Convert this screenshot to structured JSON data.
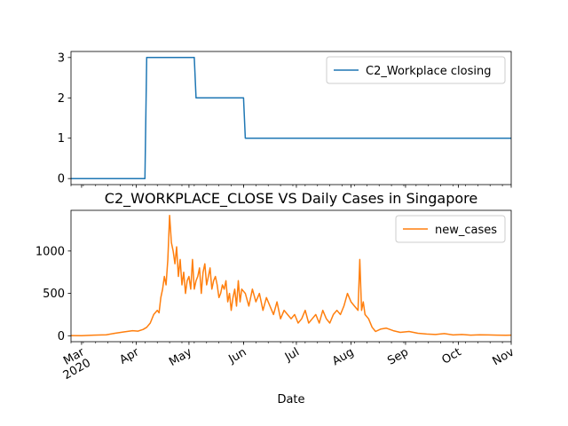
{
  "chart_data": [
    {
      "type": "line",
      "title": "",
      "xlabel": "",
      "ylabel": "",
      "x_range": [
        "2020-02-24",
        "2020-10-31"
      ],
      "ylim": [
        -0.15,
        3.15
      ],
      "yticks": [
        0,
        1,
        2,
        3
      ],
      "grid": false,
      "legend_position": "top-right",
      "series": [
        {
          "name": "C2_Workplace closing",
          "color": "#1f77b4",
          "x": [
            "2020-02-24",
            "2020-04-06",
            "2020-04-07",
            "2020-05-04",
            "2020-05-05",
            "2020-06-01",
            "2020-06-02",
            "2020-10-31"
          ],
          "values": [
            0,
            0,
            3,
            3,
            2,
            2,
            1,
            1
          ]
        }
      ]
    },
    {
      "type": "line",
      "title": "C2_WORKPLACE_CLOSE VS Daily Cases in Singapore",
      "xlabel": "Date",
      "ylabel": "",
      "x_range": [
        "2020-02-24",
        "2020-10-31"
      ],
      "ylim": [
        -70,
        1480
      ],
      "yticks": [
        0,
        500,
        1000
      ],
      "xtick_labels": [
        "Mar\n2020",
        "Apr",
        "May",
        "Jun",
        "Jul",
        "Aug",
        "Sep",
        "Oct",
        "Nov"
      ],
      "xtick_dates": [
        "2020-03-01",
        "2020-04-01",
        "2020-05-01",
        "2020-06-01",
        "2020-07-01",
        "2020-08-01",
        "2020-09-01",
        "2020-10-01",
        "2020-11-01"
      ],
      "grid": false,
      "legend_position": "top-right",
      "series": [
        {
          "name": "new_cases",
          "color": "#ff7f0e",
          "x": [
            "2020-02-24",
            "2020-03-01",
            "2020-03-08",
            "2020-03-15",
            "2020-03-20",
            "2020-03-25",
            "2020-03-30",
            "2020-04-02",
            "2020-04-05",
            "2020-04-07",
            "2020-04-09",
            "2020-04-11",
            "2020-04-13",
            "2020-04-14",
            "2020-04-15",
            "2020-04-16",
            "2020-04-17",
            "2020-04-18",
            "2020-04-19",
            "2020-04-20",
            "2020-04-21",
            "2020-04-22",
            "2020-04-23",
            "2020-04-24",
            "2020-04-25",
            "2020-04-26",
            "2020-04-27",
            "2020-04-28",
            "2020-04-29",
            "2020-04-30",
            "2020-05-01",
            "2020-05-02",
            "2020-05-03",
            "2020-05-04",
            "2020-05-05",
            "2020-05-06",
            "2020-05-07",
            "2020-05-08",
            "2020-05-09",
            "2020-05-10",
            "2020-05-11",
            "2020-05-12",
            "2020-05-13",
            "2020-05-14",
            "2020-05-15",
            "2020-05-16",
            "2020-05-17",
            "2020-05-18",
            "2020-05-19",
            "2020-05-20",
            "2020-05-21",
            "2020-05-22",
            "2020-05-23",
            "2020-05-24",
            "2020-05-25",
            "2020-05-26",
            "2020-05-27",
            "2020-05-28",
            "2020-05-29",
            "2020-05-30",
            "2020-05-31",
            "2020-06-02",
            "2020-06-04",
            "2020-06-06",
            "2020-06-08",
            "2020-06-10",
            "2020-06-12",
            "2020-06-14",
            "2020-06-16",
            "2020-06-18",
            "2020-06-20",
            "2020-06-22",
            "2020-06-24",
            "2020-06-26",
            "2020-06-28",
            "2020-06-30",
            "2020-07-02",
            "2020-07-04",
            "2020-07-06",
            "2020-07-08",
            "2020-07-10",
            "2020-07-12",
            "2020-07-14",
            "2020-07-16",
            "2020-07-18",
            "2020-07-20",
            "2020-07-22",
            "2020-07-24",
            "2020-07-26",
            "2020-07-28",
            "2020-07-30",
            "2020-08-01",
            "2020-08-03",
            "2020-08-05",
            "2020-08-06",
            "2020-08-07",
            "2020-08-08",
            "2020-08-09",
            "2020-08-11",
            "2020-08-13",
            "2020-08-15",
            "2020-08-18",
            "2020-08-21",
            "2020-08-25",
            "2020-08-29",
            "2020-09-03",
            "2020-09-08",
            "2020-09-13",
            "2020-09-18",
            "2020-09-23",
            "2020-09-28",
            "2020-10-03",
            "2020-10-08",
            "2020-10-13",
            "2020-10-18",
            "2020-10-23",
            "2020-10-28",
            "2020-10-31"
          ],
          "values": [
            2,
            1,
            8,
            12,
            30,
            45,
            60,
            55,
            75,
            100,
            150,
            250,
            300,
            270,
            450,
            550,
            700,
            600,
            900,
            1420,
            1100,
            1000,
            850,
            1050,
            700,
            900,
            600,
            750,
            500,
            650,
            700,
            550,
            900,
            550,
            650,
            700,
            800,
            500,
            750,
            850,
            600,
            700,
            800,
            550,
            650,
            700,
            600,
            450,
            500,
            600,
            550,
            650,
            400,
            500,
            300,
            450,
            550,
            350,
            650,
            400,
            550,
            500,
            350,
            550,
            400,
            500,
            300,
            450,
            350,
            250,
            400,
            200,
            300,
            250,
            200,
            250,
            150,
            200,
            300,
            150,
            200,
            250,
            150,
            300,
            200,
            150,
            250,
            300,
            250,
            350,
            500,
            400,
            350,
            300,
            900,
            300,
            400,
            250,
            200,
            100,
            50,
            80,
            90,
            60,
            40,
            50,
            30,
            20,
            15,
            25,
            10,
            15,
            8,
            12,
            10,
            8,
            5,
            7
          ]
        }
      ]
    }
  ]
}
